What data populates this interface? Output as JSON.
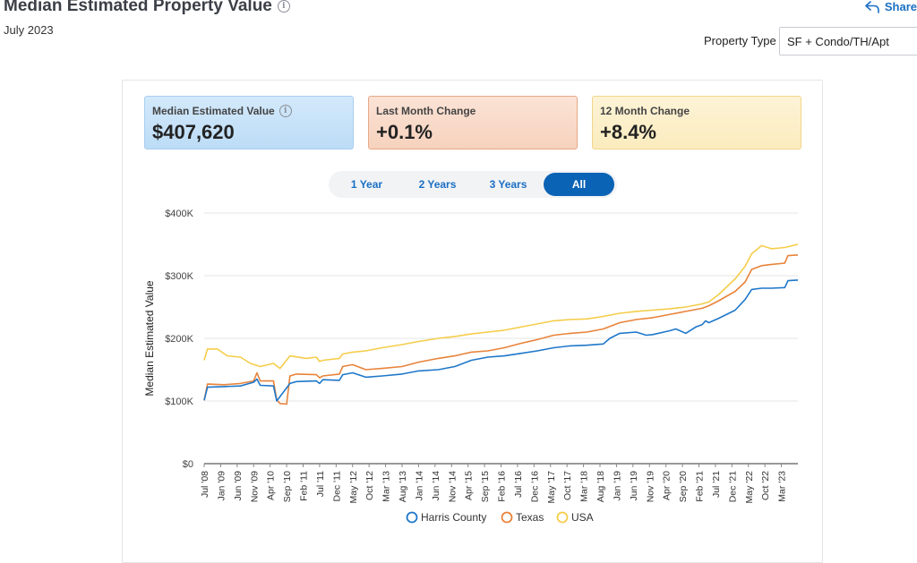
{
  "header": {
    "title": "Median Estimated Property Value",
    "date": "July 2023",
    "share_label": "Share"
  },
  "filter": {
    "label": "Property Type",
    "value": "SF + Condo/TH/Apt"
  },
  "stats": [
    {
      "label": "Median Estimated Value",
      "value": "$407,620"
    },
    {
      "label": "Last Month Change",
      "value": "+0.1%"
    },
    {
      "label": "12 Month Change",
      "value": "+8.4%"
    }
  ],
  "range": {
    "options": [
      "1 Year",
      "2 Years",
      "3 Years",
      "All"
    ],
    "selected": "All"
  },
  "colors": {
    "harris": "#1f77c9",
    "texas": "#e8833a",
    "usa": "#f5cd4a",
    "grid": "#e6e6e6",
    "axis": "#333333"
  },
  "chart_data": {
    "type": "line",
    "ylabel": "Median Estimated Value",
    "ylim": [
      0,
      400000
    ],
    "yticks": [
      0,
      100000,
      200000,
      300000,
      400000
    ],
    "ytick_labels": [
      "$0",
      "$100K",
      "$200K",
      "$300K",
      "$400K"
    ],
    "x_start": "2008-07",
    "x_end": "2023-07",
    "xtick_labels": [
      "Jul '08",
      "Jan '09",
      "Jun '09",
      "Nov '09",
      "Apr '10",
      "Sep '10",
      "Feb '11",
      "Jul '11",
      "Dec '11",
      "May '12",
      "Oct '12",
      "Mar '13",
      "Aug '13",
      "Jan '14",
      "Jun '14",
      "Nov '14",
      "Apr '15",
      "Sep '15",
      "Feb '16",
      "Jul '16",
      "Dec '16",
      "May '17",
      "Oct '17",
      "Mar '18",
      "Aug '18",
      "Jan '19",
      "Jun '19",
      "Nov '19",
      "Apr '20",
      "Sep '20",
      "Feb '21",
      "Jul '21",
      "Dec '21",
      "May '22",
      "Oct '22",
      "Mar '23"
    ],
    "series": [
      {
        "name": "Harris County",
        "color": "#1f77c9",
        "points": [
          [
            "2008-07",
            101000
          ],
          [
            "2008-08",
            122000
          ],
          [
            "2009-01",
            123000
          ],
          [
            "2009-06",
            124000
          ],
          [
            "2009-10",
            130000
          ],
          [
            "2009-11",
            135000
          ],
          [
            "2009-12",
            125000
          ],
          [
            "2010-04",
            124000
          ],
          [
            "2010-05",
            100000
          ],
          [
            "2010-09",
            128000
          ],
          [
            "2010-11",
            131000
          ],
          [
            "2011-05",
            132000
          ],
          [
            "2011-06",
            128000
          ],
          [
            "2011-07",
            134000
          ],
          [
            "2011-12",
            133000
          ],
          [
            "2012-01",
            142000
          ],
          [
            "2012-04",
            145000
          ],
          [
            "2012-08",
            138000
          ],
          [
            "2013-01",
            140000
          ],
          [
            "2013-07",
            143000
          ],
          [
            "2013-12",
            148000
          ],
          [
            "2014-06",
            150000
          ],
          [
            "2014-11",
            155000
          ],
          [
            "2015-04",
            165000
          ],
          [
            "2015-09",
            170000
          ],
          [
            "2016-02",
            172000
          ],
          [
            "2016-07",
            176000
          ],
          [
            "2016-12",
            180000
          ],
          [
            "2017-05",
            185000
          ],
          [
            "2017-10",
            188000
          ],
          [
            "2018-03",
            189000
          ],
          [
            "2018-08",
            191000
          ],
          [
            "2018-10",
            200000
          ],
          [
            "2019-01",
            208000
          ],
          [
            "2019-06",
            210000
          ],
          [
            "2019-09",
            205000
          ],
          [
            "2019-11",
            206000
          ],
          [
            "2020-04",
            212000
          ],
          [
            "2020-06",
            215000
          ],
          [
            "2020-09",
            208000
          ],
          [
            "2020-12",
            218000
          ],
          [
            "2021-02",
            222000
          ],
          [
            "2021-03",
            228000
          ],
          [
            "2021-04",
            225000
          ],
          [
            "2021-07",
            232000
          ],
          [
            "2021-12",
            245000
          ],
          [
            "2022-03",
            262000
          ],
          [
            "2022-05",
            278000
          ],
          [
            "2022-08",
            280000
          ],
          [
            "2022-11",
            280000
          ],
          [
            "2023-03",
            281000
          ],
          [
            "2023-04",
            292000
          ],
          [
            "2023-07",
            293000
          ]
        ]
      },
      {
        "name": "Texas",
        "color": "#e8833a",
        "points": [
          [
            "2008-07",
            101000
          ],
          [
            "2008-08",
            127000
          ],
          [
            "2009-01",
            126000
          ],
          [
            "2009-06",
            128000
          ],
          [
            "2009-10",
            132000
          ],
          [
            "2009-11",
            145000
          ],
          [
            "2009-12",
            132000
          ],
          [
            "2010-04",
            132000
          ],
          [
            "2010-05",
            102000
          ],
          [
            "2010-06",
            96000
          ],
          [
            "2010-08",
            95000
          ],
          [
            "2010-09",
            140000
          ],
          [
            "2010-11",
            143000
          ],
          [
            "2011-05",
            142000
          ],
          [
            "2011-06",
            137000
          ],
          [
            "2011-07",
            140000
          ],
          [
            "2011-12",
            143000
          ],
          [
            "2012-01",
            155000
          ],
          [
            "2012-04",
            158000
          ],
          [
            "2012-08",
            150000
          ],
          [
            "2013-01",
            152000
          ],
          [
            "2013-07",
            155000
          ],
          [
            "2013-12",
            162000
          ],
          [
            "2014-06",
            168000
          ],
          [
            "2014-11",
            172000
          ],
          [
            "2015-04",
            178000
          ],
          [
            "2015-09",
            180000
          ],
          [
            "2016-02",
            185000
          ],
          [
            "2016-07",
            192000
          ],
          [
            "2016-12",
            198000
          ],
          [
            "2017-05",
            205000
          ],
          [
            "2017-10",
            208000
          ],
          [
            "2018-03",
            210000
          ],
          [
            "2018-08",
            215000
          ],
          [
            "2019-01",
            225000
          ],
          [
            "2019-06",
            230000
          ],
          [
            "2019-11",
            233000
          ],
          [
            "2020-04",
            238000
          ],
          [
            "2020-09",
            243000
          ],
          [
            "2021-02",
            248000
          ],
          [
            "2021-04",
            252000
          ],
          [
            "2021-07",
            260000
          ],
          [
            "2021-12",
            275000
          ],
          [
            "2022-03",
            290000
          ],
          [
            "2022-05",
            310000
          ],
          [
            "2022-08",
            316000
          ],
          [
            "2022-11",
            318000
          ],
          [
            "2023-03",
            320000
          ],
          [
            "2023-04",
            332000
          ],
          [
            "2023-07",
            333000
          ]
        ]
      },
      {
        "name": "USA",
        "color": "#f5cd4a",
        "points": [
          [
            "2008-07",
            165000
          ],
          [
            "2008-08",
            183000
          ],
          [
            "2008-11",
            183000
          ],
          [
            "2009-02",
            172000
          ],
          [
            "2009-06",
            170000
          ],
          [
            "2009-09",
            160000
          ],
          [
            "2009-12",
            155000
          ],
          [
            "2010-04",
            160000
          ],
          [
            "2010-06",
            152000
          ],
          [
            "2010-09",
            172000
          ],
          [
            "2011-02",
            168000
          ],
          [
            "2011-05",
            170000
          ],
          [
            "2011-06",
            163000
          ],
          [
            "2011-07",
            165000
          ],
          [
            "2011-12",
            168000
          ],
          [
            "2012-01",
            175000
          ],
          [
            "2012-04",
            178000
          ],
          [
            "2012-08",
            180000
          ],
          [
            "2013-01",
            185000
          ],
          [
            "2013-07",
            190000
          ],
          [
            "2013-12",
            195000
          ],
          [
            "2014-06",
            200000
          ],
          [
            "2014-11",
            203000
          ],
          [
            "2015-04",
            207000
          ],
          [
            "2015-09",
            210000
          ],
          [
            "2016-02",
            213000
          ],
          [
            "2016-07",
            218000
          ],
          [
            "2016-12",
            223000
          ],
          [
            "2017-05",
            228000
          ],
          [
            "2017-10",
            230000
          ],
          [
            "2018-03",
            231000
          ],
          [
            "2018-08",
            235000
          ],
          [
            "2019-01",
            240000
          ],
          [
            "2019-06",
            243000
          ],
          [
            "2019-11",
            245000
          ],
          [
            "2020-04",
            247000
          ],
          [
            "2020-09",
            250000
          ],
          [
            "2021-02",
            255000
          ],
          [
            "2021-04",
            258000
          ],
          [
            "2021-07",
            270000
          ],
          [
            "2021-12",
            295000
          ],
          [
            "2022-03",
            315000
          ],
          [
            "2022-05",
            335000
          ],
          [
            "2022-08",
            348000
          ],
          [
            "2022-11",
            343000
          ],
          [
            "2023-03",
            345000
          ],
          [
            "2023-07",
            350000
          ]
        ]
      }
    ]
  }
}
